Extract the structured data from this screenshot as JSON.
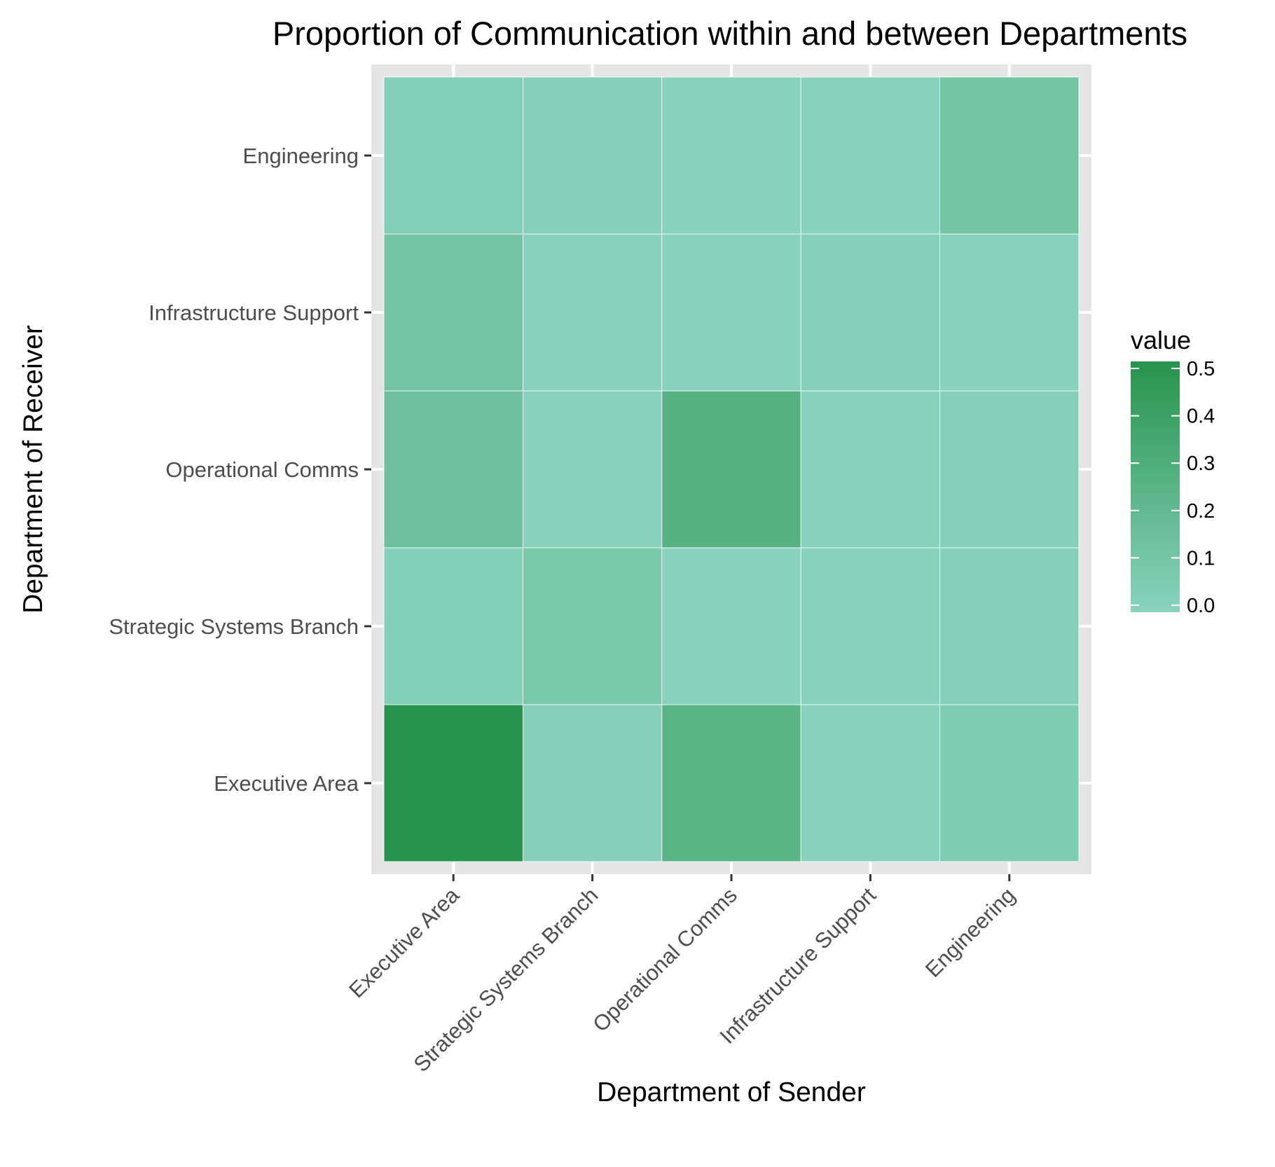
{
  "chart_data": {
    "type": "heatmap",
    "title": "Proportion of  Communication within and between Departments",
    "xlabel": "Department of Sender",
    "ylabel": "Department of Receiver",
    "x_categories": [
      "Executive Area",
      "Strategic Systems Branch",
      "Operational Comms",
      "Infrastructure Support",
      "Engineering"
    ],
    "y_categories": [
      "Executive Area",
      "Strategic Systems Branch",
      "Operational Comms",
      "Infrastructure Support",
      "Engineering"
    ],
    "values": [
      [
        0.5,
        0.02,
        0.25,
        0.01,
        0.05
      ],
      [
        0.03,
        0.09,
        0.01,
        0.01,
        0.02
      ],
      [
        0.15,
        0.01,
        0.26,
        0.01,
        0.02
      ],
      [
        0.11,
        0.01,
        0.01,
        0.02,
        0.01
      ],
      [
        0.04,
        0.02,
        0.01,
        0.01,
        0.12
      ]
    ],
    "legend": {
      "title": "value",
      "ticks": [
        0.0,
        0.1,
        0.2,
        0.3,
        0.4,
        0.5
      ],
      "tick_labels": [
        "0.0",
        "0.1",
        "0.2",
        "0.3",
        "0.4",
        "0.5"
      ],
      "range": [
        0,
        0.5
      ],
      "placement": "right"
    },
    "colors": {
      "low": "#8ad3bf",
      "high": "#27944c",
      "panel_background": "#e5e5e5",
      "grid": "#ffffff"
    },
    "grid": true
  }
}
